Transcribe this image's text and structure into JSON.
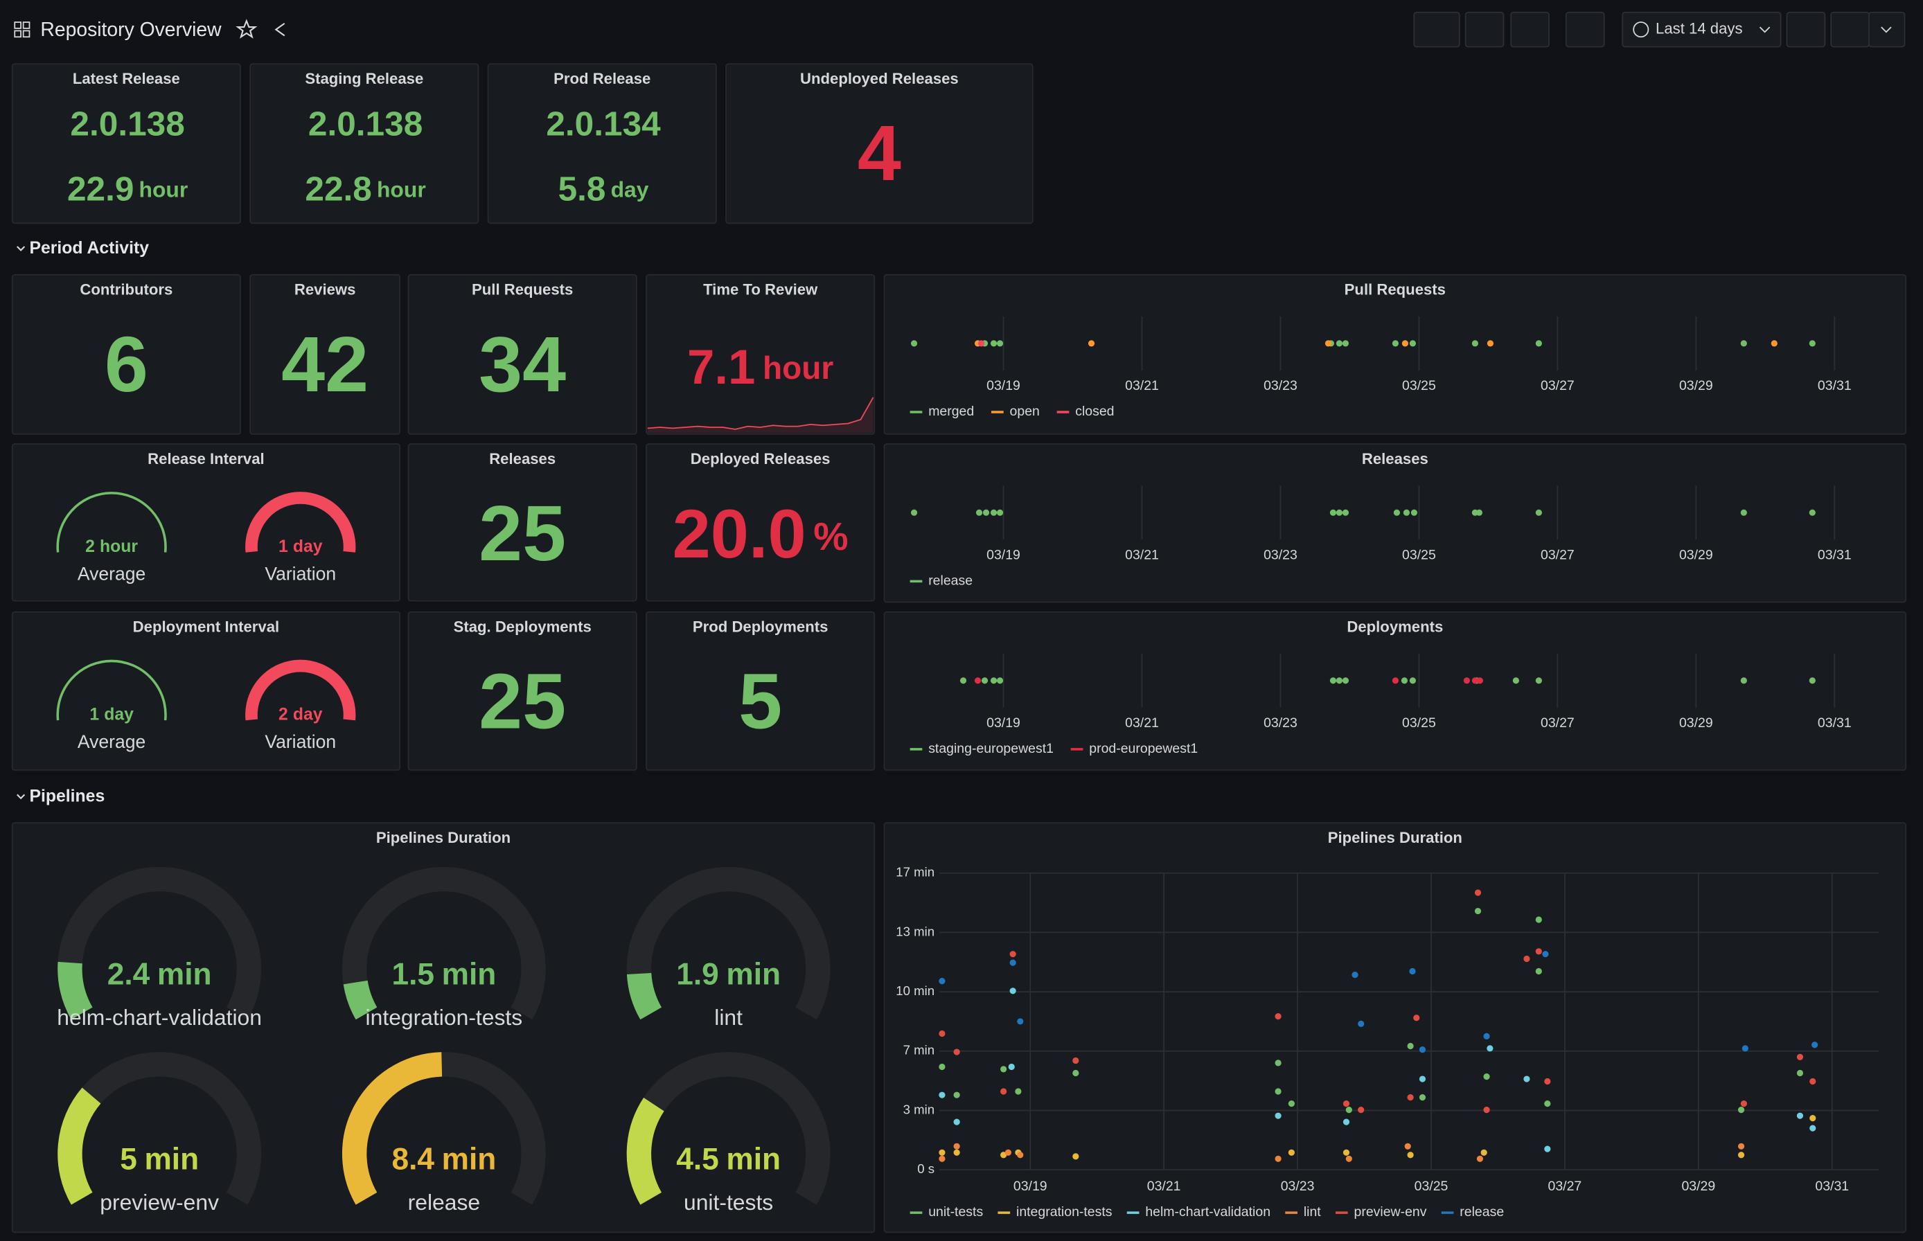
{
  "header": {
    "title": "Repository Overview",
    "time_range": "Last 14 days"
  },
  "releases_row": [
    {
      "title": "Latest Release",
      "version": "2.0.138",
      "age": 22.9,
      "unit": "hour"
    },
    {
      "title": "Staging Release",
      "version": "2.0.138",
      "age": 22.8,
      "unit": "hour"
    },
    {
      "title": "Prod Release",
      "version": "2.0.134",
      "age": 5.8,
      "unit": "day"
    }
  ],
  "undeployed": {
    "title": "Undeployed Releases",
    "value": 4
  },
  "sections": [
    "Period Activity",
    "Pipelines"
  ],
  "counters": [
    {
      "title": "Contributors",
      "value": 6
    },
    {
      "title": "Reviews",
      "value": 42
    },
    {
      "title": "Pull Requests",
      "value": 34
    },
    {
      "title": "Releases",
      "value": 25
    },
    {
      "title": "Stag. Deployments",
      "value": 25
    },
    {
      "title": "Prod Deployments",
      "value": 5
    }
  ],
  "time_to_review": {
    "title": "Time To Review",
    "value": 7.1,
    "unit": "hour",
    "trend": [
      0.3,
      0.4,
      0.3,
      0.4,
      0.5,
      0.4,
      0.4,
      0.2,
      0.5,
      0.4,
      0.6,
      0.5,
      0.5,
      0.7,
      0.6,
      0.7,
      0.8,
      1.2,
      3.5
    ]
  },
  "deployed_releases": {
    "title": "Deployed Releases",
    "value": "20.0",
    "unit": "%"
  },
  "intervals": [
    {
      "title": "Release Interval",
      "gauges": [
        {
          "value": 2,
          "unit": "hour",
          "label": "Average",
          "color": "#73bf69"
        },
        {
          "value": 1,
          "unit": "day",
          "label": "Variation",
          "color": "#f2495c"
        }
      ]
    },
    {
      "title": "Deployment Interval",
      "gauges": [
        {
          "value": 1,
          "unit": "day",
          "label": "Average",
          "color": "#73bf69"
        },
        {
          "value": 2,
          "unit": "day",
          "label": "Variation",
          "color": "#f2495c"
        }
      ]
    }
  ],
  "timelines": [
    {
      "title": "Pull Requests",
      "xlim": [
        -1.42,
        12.87
      ],
      "xticks": [
        {
          "value": 0,
          "label": "03/19"
        },
        {
          "value": 2,
          "label": "03/21"
        },
        {
          "value": 4,
          "label": "03/23"
        },
        {
          "value": 6,
          "label": "03/25"
        },
        {
          "value": 8,
          "label": "03/27"
        },
        {
          "value": 10,
          "label": "03/29"
        },
        {
          "value": 12,
          "label": "03/31"
        }
      ],
      "series": [
        {
          "name": "merged",
          "color": "#73bf69",
          "x": [
            -1.29,
            -0.27,
            -0.14,
            -0.05,
            4.73,
            4.85,
            4.94,
            5.66,
            5.91,
            6.81,
            7.73,
            10.69,
            11.68
          ]
        },
        {
          "name": "open",
          "color": "#ff9830",
          "x": [
            -0.37,
            1.27,
            4.69,
            5.8,
            7.03,
            11.13
          ]
        },
        {
          "name": "closed",
          "color": "#f2495c",
          "x": [
            -0.32
          ]
        }
      ]
    },
    {
      "title": "Releases",
      "xlim": [
        -1.42,
        12.87
      ],
      "xticks": [
        {
          "value": 0,
          "label": "03/19"
        },
        {
          "value": 2,
          "label": "03/21"
        },
        {
          "value": 4,
          "label": "03/23"
        },
        {
          "value": 6,
          "label": "03/25"
        },
        {
          "value": 8,
          "label": "03/27"
        },
        {
          "value": 10,
          "label": "03/29"
        },
        {
          "value": 12,
          "label": "03/31"
        }
      ],
      "series": [
        {
          "name": "release",
          "color": "#73bf69",
          "x": [
            -1.29,
            -0.35,
            -0.25,
            -0.14,
            -0.05,
            4.76,
            4.85,
            4.94,
            5.68,
            5.82,
            5.93,
            6.81,
            6.87,
            7.73,
            10.69,
            11.68
          ]
        }
      ]
    },
    {
      "title": "Deployments",
      "xlim": [
        -1.42,
        12.87
      ],
      "xticks": [
        {
          "value": 0,
          "label": "03/19"
        },
        {
          "value": 2,
          "label": "03/21"
        },
        {
          "value": 4,
          "label": "03/23"
        },
        {
          "value": 6,
          "label": "03/25"
        },
        {
          "value": 8,
          "label": "03/27"
        },
        {
          "value": 10,
          "label": "03/29"
        },
        {
          "value": 12,
          "label": "03/31"
        }
      ],
      "series": [
        {
          "name": "staging-europewest1",
          "color": "#73bf69",
          "x": [
            -0.58,
            -0.27,
            -0.14,
            -0.05,
            4.76,
            4.85,
            4.94,
            5.79,
            5.91,
            6.83,
            7.4,
            7.73,
            10.69,
            11.68
          ]
        },
        {
          "name": "prod-europewest1",
          "color": "#e02f44",
          "x": [
            -0.37,
            5.66,
            6.69,
            6.81,
            6.88
          ]
        }
      ]
    }
  ],
  "pipeline_gauges": {
    "title": "Pipelines Duration",
    "max": 17,
    "gauges": [
      {
        "name": "helm-chart-validation",
        "value": 2.4,
        "unit": "min",
        "color": "#73bf69"
      },
      {
        "name": "integration-tests",
        "value": 1.5,
        "unit": "min",
        "color": "#73bf69"
      },
      {
        "name": "lint",
        "value": 1.9,
        "unit": "min",
        "color": "#73bf69"
      },
      {
        "name": "preview-env",
        "value": 5.0,
        "unit": "min",
        "color": "#c0d84a"
      },
      {
        "name": "release",
        "value": 8.4,
        "unit": "min",
        "color": "#eab839"
      },
      {
        "name": "unit-tests",
        "value": 4.5,
        "unit": "min",
        "color": "#c0d84a"
      }
    ]
  },
  "pipeline_chart": {
    "type": "scatter",
    "title": "Pipelines Duration",
    "xlim": [
      -2.02,
      12.7
    ],
    "xticks": [
      {
        "value": 0,
        "label": "03/19"
      },
      {
        "value": 2,
        "label": "03/21"
      },
      {
        "value": 4,
        "label": "03/23"
      },
      {
        "value": 6,
        "label": "03/25"
      },
      {
        "value": 8,
        "label": "03/27"
      },
      {
        "value": 10,
        "label": "03/29"
      },
      {
        "value": 12,
        "label": "03/31"
      }
    ],
    "ylim": [
      0,
      1000
    ],
    "yticks": [
      {
        "value": 0,
        "label": "0 s"
      },
      {
        "value": 200,
        "label": "3 min"
      },
      {
        "value": 400,
        "label": "7 min"
      },
      {
        "value": 600,
        "label": "10 min"
      },
      {
        "value": 800,
        "label": "13 min"
      },
      {
        "value": 1000,
        "label": "17 min"
      }
    ],
    "grid": true,
    "series": [
      {
        "name": "unit-tests",
        "color": "#73bf69",
        "x": [
          -1.32,
          -1.1,
          -0.4,
          -0.18,
          0.68,
          3.71,
          3.71,
          3.91,
          4.77,
          5.69,
          5.87,
          6.7,
          6.83,
          7.61,
          7.61,
          7.74,
          10.64,
          11.52
        ],
        "values": [
          347,
          252,
          339,
          264,
          326,
          360,
          264,
          223,
          202,
          417,
          244,
          872,
          314,
          843,
          669,
          223,
          202,
          326
        ]
      },
      {
        "name": "integration-tests",
        "color": "#eab839",
        "x": [
          -1.32,
          -1.1,
          -0.4,
          -0.18,
          0.68,
          3.91,
          4.73,
          5.69,
          6.79,
          10.64,
          11.71
        ],
        "values": [
          58,
          58,
          50,
          58,
          45,
          58,
          58,
          50,
          58,
          50,
          174
        ]
      },
      {
        "name": "helm-chart-validation",
        "color": "#6ed0e0",
        "x": [
          -1.32,
          -1.1,
          -0.28,
          -0.26,
          3.71,
          4.73,
          5.87,
          6.88,
          7.43,
          7.74,
          11.52,
          11.71
        ],
        "values": [
          252,
          161,
          347,
          603,
          182,
          161,
          306,
          409,
          306,
          70,
          182,
          140
        ]
      },
      {
        "name": "lint",
        "color": "#ef843c",
        "x": [
          -1.32,
          -1.1,
          -0.33,
          -0.15,
          3.71,
          4.77,
          5.65,
          6.73,
          10.64
        ],
        "values": [
          37,
          79,
          58,
          50,
          37,
          37,
          79,
          37,
          79
        ]
      },
      {
        "name": "preview-env",
        "color": "#e24d42",
        "x": [
          -1.32,
          -1.1,
          -0.4,
          -0.26,
          0.68,
          3.71,
          4.73,
          4.95,
          5.69,
          5.78,
          6.7,
          6.83,
          7.43,
          7.61,
          7.74,
          10.68,
          11.52,
          11.71
        ],
        "values": [
          459,
          397,
          264,
          727,
          368,
          517,
          223,
          202,
          244,
          512,
          934,
          202,
          711,
          736,
          298,
          223,
          380,
          298
        ]
      },
      {
        "name": "release",
        "color": "#1f78c1",
        "x": [
          -1.32,
          -0.26,
          -0.15,
          4.86,
          4.95,
          5.72,
          5.87,
          6.83,
          7.71,
          10.7,
          11.74
        ],
        "values": [
          636,
          698,
          500,
          657,
          492,
          669,
          405,
          450,
          727,
          409,
          421
        ]
      }
    ]
  }
}
